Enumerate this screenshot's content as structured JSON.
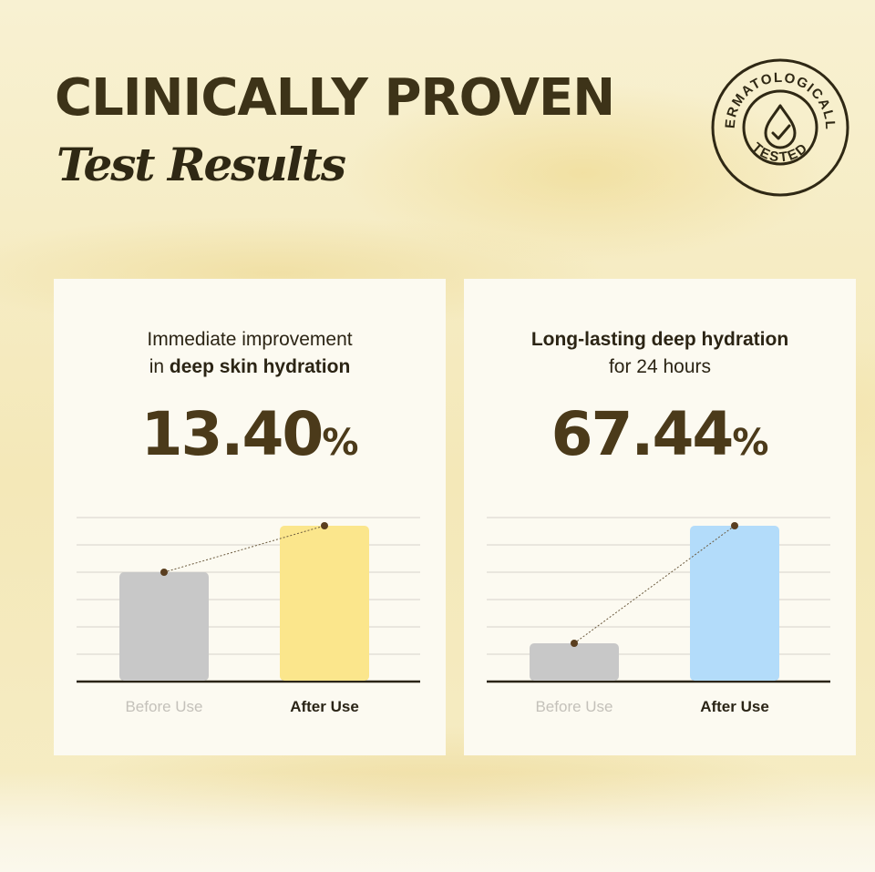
{
  "header": {
    "title": "CLINICALLY PROVEN",
    "subtitle": "Test Results"
  },
  "badge": {
    "top_text": "DERMATOLOGICALLY",
    "bottom_text": "TESTED",
    "icon": "water-drop-check-icon"
  },
  "colors": {
    "text_dark": "#3d3318",
    "stat_brown": "#4b3a1a",
    "before_bar": "#c8c8c8",
    "after_bar_yellow": "#fbe68c",
    "after_bar_blue": "#b3dcfa",
    "marker": "#5a3e1f"
  },
  "cards": [
    {
      "caption_line1_plain": "Immediate improvement",
      "caption_line2_prefix": "in ",
      "caption_line2_bold": "deep skin hydration",
      "stat_value": "13.40",
      "stat_unit": "%"
    },
    {
      "caption_line1_bold": "Long-lasting deep hydration",
      "caption_line2_plain": "for  24 hours",
      "stat_value": "67.44",
      "stat_unit": "%"
    }
  ],
  "chart_data": [
    {
      "type": "bar",
      "categories": [
        "Before Use",
        "After Use"
      ],
      "values": [
        4,
        5.7
      ],
      "ylim": [
        0,
        6
      ],
      "grid": true,
      "bar_colors": [
        "#c8c8c8",
        "#fbe68c"
      ]
    },
    {
      "type": "bar",
      "categories": [
        "Before Use",
        "After Use"
      ],
      "values": [
        1.4,
        5.7
      ],
      "ylim": [
        0,
        6
      ],
      "grid": true,
      "bar_colors": [
        "#c8c8c8",
        "#b3dcfa"
      ]
    }
  ]
}
